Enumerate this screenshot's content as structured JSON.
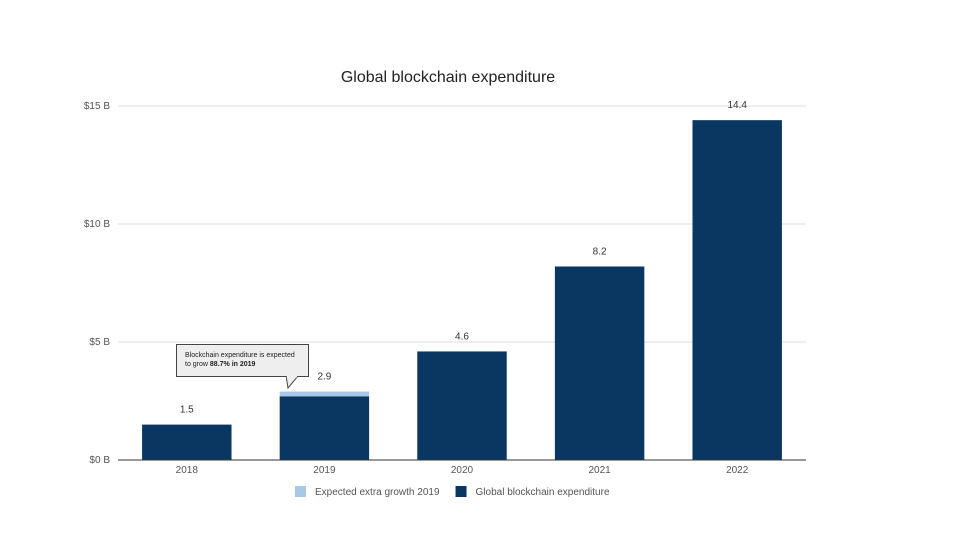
{
  "chart_data": {
    "type": "bar",
    "title": "Global blockchain expenditure",
    "categories": [
      "2018",
      "2019",
      "2020",
      "2021",
      "2022"
    ],
    "series": [
      {
        "name": "Global blockchain expenditure",
        "color": "#0a3762",
        "values": [
          1.5,
          2.7,
          4.6,
          8.2,
          14.4
        ]
      },
      {
        "name": "Expected extra growth 2019",
        "color": "#a8c8e8",
        "values": [
          0,
          0.2,
          0,
          0,
          0
        ]
      }
    ],
    "stacked": true,
    "data_labels": [
      "1.5",
      "2.9",
      "4.6",
      "8.2",
      "14.4"
    ],
    "ylim": [
      0,
      15
    ],
    "y_ticks": [
      {
        "value": 0,
        "label": "$0 B"
      },
      {
        "value": 5,
        "label": "$5 B"
      },
      {
        "value": 10,
        "label": "$10 B"
      },
      {
        "value": 15,
        "label": "$15 B"
      }
    ],
    "grid": true,
    "legend_position": "bottom",
    "legend": [
      {
        "label": "Expected extra growth 2019",
        "color": "#a8c8e8"
      },
      {
        "label": "Global blockchain expenditure",
        "color": "#0a3762"
      }
    ],
    "annotation": {
      "text_plain": "Blockchain expenditure is expected to grow ",
      "text_bold": "88.7% in 2019"
    }
  }
}
